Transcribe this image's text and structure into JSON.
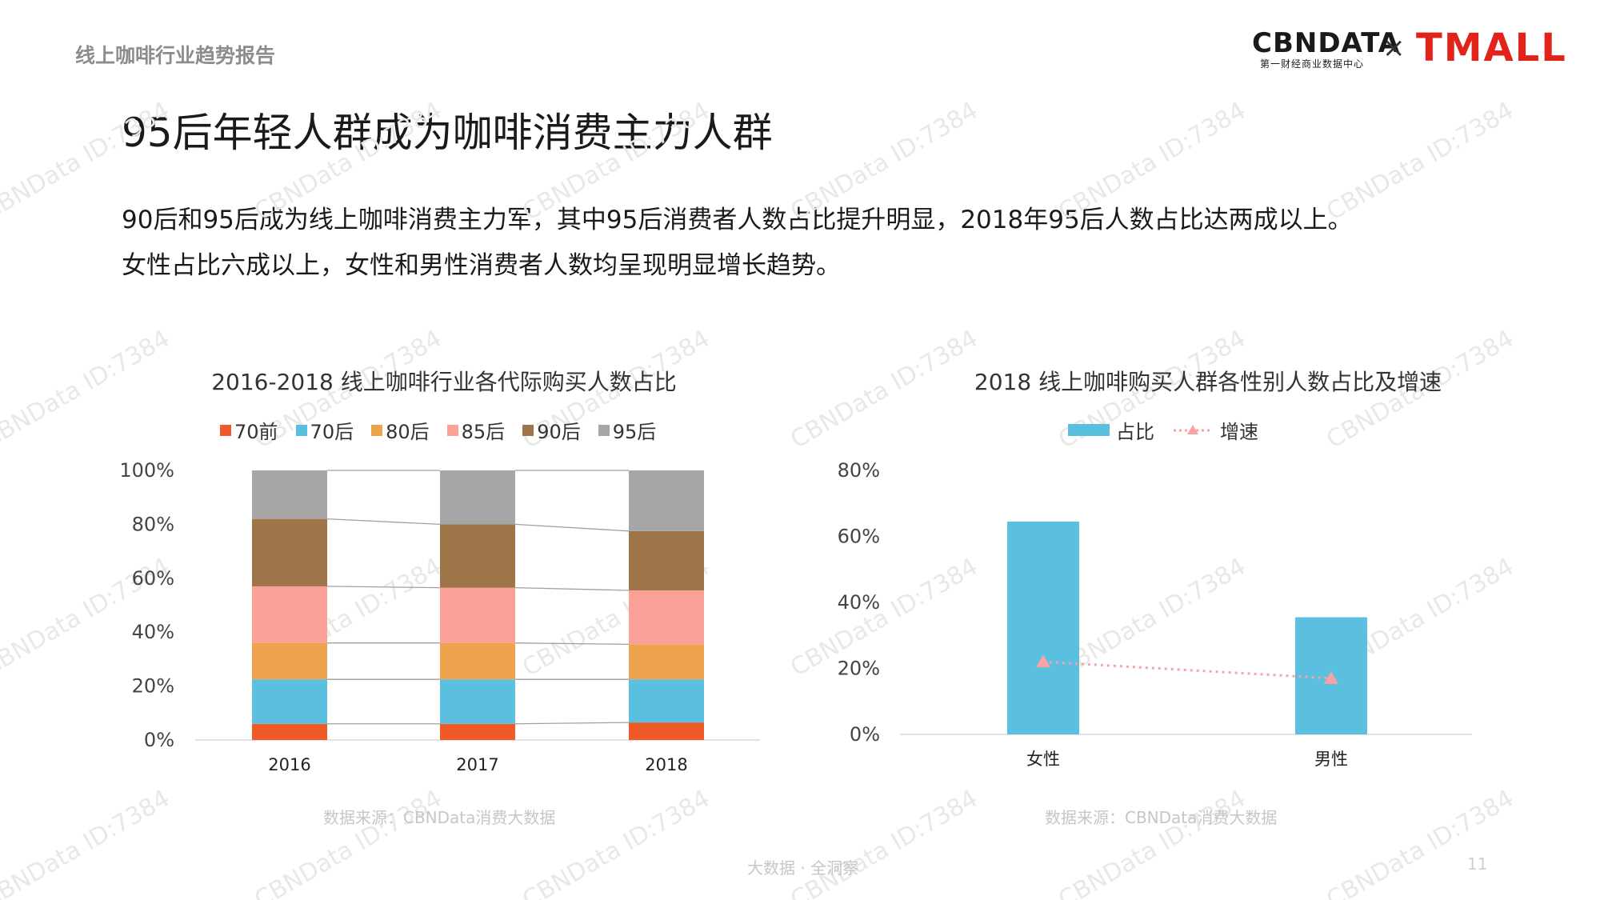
{
  "header": {
    "report_name": "线上咖啡行业趋势报告",
    "logo_cbn": "CBNDATA",
    "logo_cbn_sub": "第一财经商业数据中心",
    "logo_separator": "×",
    "logo_tmall": "TMALL"
  },
  "page_title": "95后年轻人群成为咖啡消费主力人群",
  "summary": [
    "90后和95后成为线上咖啡消费主力军，其中95后消费者人数占比提升明显，2018年95后人数占比达两成以上。",
    "女性占比六成以上，女性和男性消费者人数均呈现明显增长趋势。"
  ],
  "watermark": "CBNData ID:7384",
  "chart_data": [
    {
      "type": "bar",
      "stacked": true,
      "title": "2016-2018 线上咖啡行业各代际购买人数占比",
      "categories": [
        "2016",
        "2017",
        "2018"
      ],
      "series": [
        {
          "name": "70前",
          "color": "#f05a28",
          "values": [
            6,
            6,
            6.5
          ]
        },
        {
          "name": "70后",
          "color": "#5bc0e0",
          "values": [
            16.5,
            16.5,
            16
          ]
        },
        {
          "name": "80后",
          "color": "#eda34d",
          "values": [
            13.5,
            13.5,
            13
          ]
        },
        {
          "name": "85后",
          "color": "#fca197",
          "values": [
            21,
            20.5,
            20
          ]
        },
        {
          "name": "90后",
          "color": "#9e7449",
          "values": [
            25,
            23.5,
            22
          ]
        },
        {
          "name": "95后",
          "color": "#a6a6a6",
          "values": [
            18,
            20,
            22.5
          ]
        }
      ],
      "yticks": [
        "0%",
        "20%",
        "40%",
        "60%",
        "80%",
        "100%"
      ],
      "ylim": [
        0,
        100
      ],
      "legend": "top",
      "source": "数据来源：CBNData消费大数据"
    },
    {
      "type": "bar",
      "title": "2018 线上咖啡购买人群各性别人数占比及增速",
      "categories": [
        "女性",
        "男性"
      ],
      "series": [
        {
          "name": "占比",
          "kind": "bar",
          "color": "#5bc0e0",
          "values": [
            64.5,
            35.5
          ]
        },
        {
          "name": "增速",
          "kind": "line",
          "color": "#f7a3a3",
          "values": [
            22,
            17
          ]
        }
      ],
      "yticks": [
        "0%",
        "20%",
        "40%",
        "60%",
        "80%"
      ],
      "ylim": [
        0,
        80
      ],
      "legend": "top",
      "source": "数据来源：CBNData消费大数据"
    }
  ],
  "footer": {
    "tagline": "大数据 · 全洞察",
    "page_number": "11"
  }
}
